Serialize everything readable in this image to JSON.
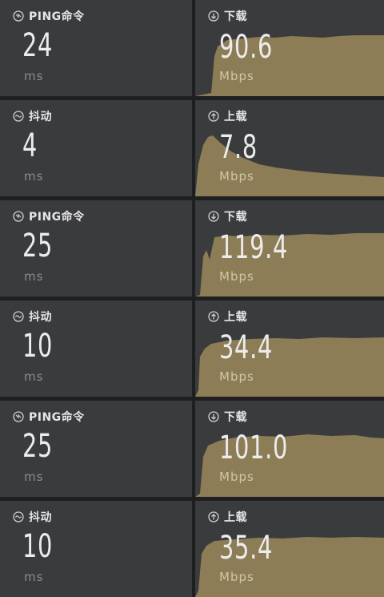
{
  "tiles": [
    {
      "kind": "ping",
      "label": "PING命令",
      "value": "24",
      "unit": "ms",
      "icon": "ping-icon"
    },
    {
      "kind": "speed",
      "label": "下载",
      "value": "90.6",
      "unit": "Mbps",
      "icon": "download-icon",
      "graph": "download"
    },
    {
      "kind": "jitter",
      "label": "抖动",
      "value": "4",
      "unit": "ms",
      "icon": "jitter-icon"
    },
    {
      "kind": "speed",
      "label": "上载",
      "value": "7.8",
      "unit": "Mbps",
      "icon": "upload-icon",
      "graph": "upload-decay"
    },
    {
      "kind": "ping",
      "label": "PING命令",
      "value": "25",
      "unit": "ms",
      "icon": "ping-icon"
    },
    {
      "kind": "speed",
      "label": "下载",
      "value": "119.4",
      "unit": "Mbps",
      "icon": "download-icon",
      "graph": "download"
    },
    {
      "kind": "jitter",
      "label": "抖动",
      "value": "10",
      "unit": "ms",
      "icon": "jitter-icon"
    },
    {
      "kind": "speed",
      "label": "上载",
      "value": "34.4",
      "unit": "Mbps",
      "icon": "upload-icon",
      "graph": "upload-flat"
    },
    {
      "kind": "ping",
      "label": "PING命令",
      "value": "25",
      "unit": "ms",
      "icon": "ping-icon"
    },
    {
      "kind": "speed",
      "label": "下载",
      "value": "101.0",
      "unit": "Mbps",
      "icon": "download-icon",
      "graph": "download"
    },
    {
      "kind": "jitter",
      "label": "抖动",
      "value": "10",
      "unit": "ms",
      "icon": "jitter-icon"
    },
    {
      "kind": "speed",
      "label": "上载",
      "value": "35.4",
      "unit": "Mbps",
      "icon": "upload-icon",
      "graph": "upload-flat"
    }
  ],
  "colors": {
    "tile_bg": "#3a3b3d",
    "graph_fill": "#8d7d56",
    "gap": "#1e1f21",
    "text": "#ececec",
    "unit": "#8c8c8c"
  }
}
